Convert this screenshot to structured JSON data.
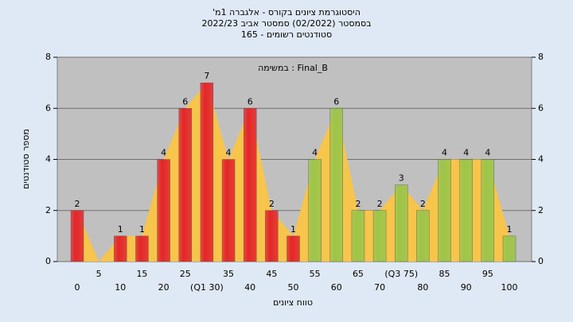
{
  "chart_data": {
    "type": "bar",
    "title": "היסטוגרמת ציונים בקורס - אלגברה 1מ'",
    "subtitle": "בסמסטר (02/2022) סמסטר אביב 2022/23",
    "subtitle2": "סטודנטים רשומים - 165",
    "annotation": "Final_B : במשימה",
    "x_label": "טווח ציונים",
    "y_label": "מספר סטודנטים",
    "categories": [
      "0",
      "5",
      "10",
      "15",
      "20",
      "25",
      "(Q1 30)",
      "35",
      "40",
      "45",
      "50",
      "55",
      "60",
      "65",
      "70",
      "(Q3 75)",
      "80",
      "85",
      "90",
      "95",
      "100"
    ],
    "values": [
      2,
      0,
      1,
      1,
      4,
      6,
      7,
      4,
      6,
      2,
      1,
      4,
      6,
      2,
      2,
      3,
      2,
      4,
      4,
      4,
      1
    ],
    "colors": [
      "#e3262b",
      "#e3262b",
      "#e3262b",
      "#e3262b",
      "#e3262b",
      "#e3262b",
      "#e3262b",
      "#e3262b",
      "#e3262b",
      "#e3262b",
      "#e3262b",
      "#9cc54a",
      "#9cc54a",
      "#9cc54a",
      "#9cc54a",
      "#9cc54a",
      "#9cc54a",
      "#9cc54a",
      "#9cc54a",
      "#9cc54a",
      "#9cc54a"
    ],
    "area_color": "#f7c54b",
    "ylim": [
      0,
      8
    ],
    "yticks": [
      0,
      2,
      4,
      6,
      8
    ],
    "y2lim": [
      0,
      8
    ],
    "y2ticks": [
      0,
      2,
      4,
      6,
      8
    ],
    "grid": true
  }
}
